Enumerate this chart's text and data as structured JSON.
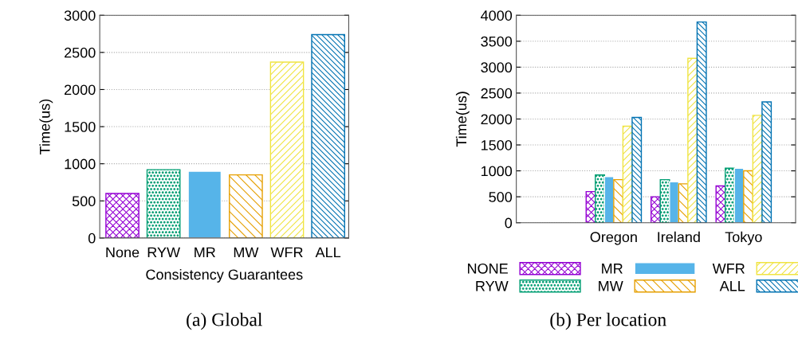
{
  "chart_data": [
    {
      "type": "bar",
      "title": "(a) Global",
      "xlabel": "Consistency Guarantees",
      "ylabel": "Time(us)",
      "categories": [
        "None",
        "RYW",
        "MR",
        "MW",
        "WFR",
        "ALL"
      ],
      "values": [
        600,
        920,
        900,
        850,
        2370,
        2740
      ],
      "colors": [
        "#9400d3",
        "#009e73",
        "#56b4e9",
        "#e69f00",
        "#f0e442",
        "#0072b2"
      ],
      "ylim": [
        0,
        3000
      ],
      "yticks": [
        0,
        500,
        1000,
        1500,
        2000,
        2500,
        3000
      ],
      "grid": "y"
    },
    {
      "type": "bar",
      "title": "(b) Per location",
      "ylabel": "Time(us)",
      "categories": [
        "Oregon",
        "Ireland",
        "Tokyo"
      ],
      "series": [
        {
          "name": "NONE",
          "color": "#9400d3",
          "values": [
            600,
            500,
            710
          ]
        },
        {
          "name": "RYW",
          "color": "#009e73",
          "values": [
            920,
            830,
            1050
          ]
        },
        {
          "name": "MR",
          "color": "#56b4e9",
          "values": [
            890,
            790,
            1050
          ]
        },
        {
          "name": "MW",
          "color": "#e69f00",
          "values": [
            830,
            750,
            1000
          ]
        },
        {
          "name": "WFR",
          "color": "#f0e442",
          "values": [
            1860,
            3170,
            2070
          ]
        },
        {
          "name": "ALL",
          "color": "#0072b2",
          "values": [
            2030,
            3870,
            2330
          ]
        }
      ],
      "ylim": [
        0,
        4000
      ],
      "yticks": [
        0,
        500,
        1000,
        1500,
        2000,
        2500,
        3000,
        3500,
        4000
      ],
      "grid": "y",
      "legend": "bottom"
    }
  ]
}
